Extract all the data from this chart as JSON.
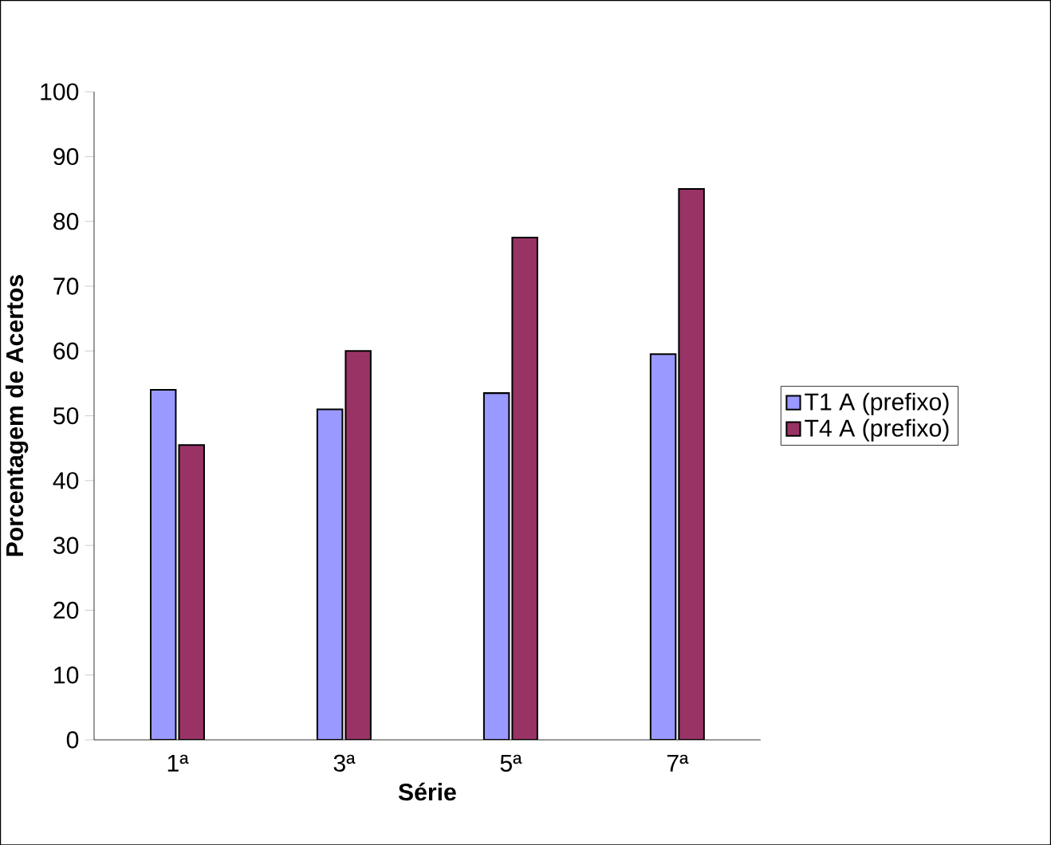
{
  "chart_data": {
    "type": "bar",
    "xlabel": "Série",
    "ylabel": "Porcentagem de Acertos",
    "categories": [
      "1ª",
      "3ª",
      "5ª",
      "7ª"
    ],
    "series": [
      {
        "name": "T1 A (prefixo)",
        "color": "#9999ff",
        "values": [
          54,
          51,
          53.5,
          59.5
        ]
      },
      {
        "name": "T4 A (prefixo)",
        "color": "#993366",
        "values": [
          45.5,
          60,
          77.5,
          85
        ]
      }
    ],
    "ylim": [
      0,
      100
    ],
    "yticks": [
      0,
      10,
      20,
      30,
      40,
      50,
      60,
      70,
      80,
      90,
      100
    ],
    "grid": false,
    "legend": "right"
  }
}
